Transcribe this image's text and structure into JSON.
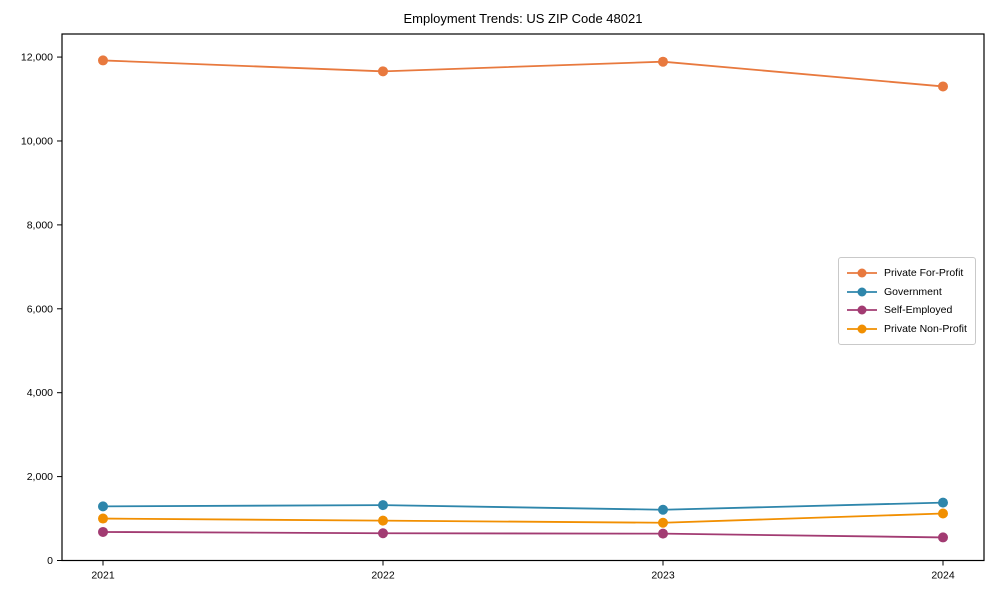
{
  "chart_data": {
    "type": "line",
    "title": "Employment Trends: US ZIP Code 48021",
    "xlabel": "",
    "ylabel": "",
    "x": [
      "2021",
      "2022",
      "2023",
      "2024"
    ],
    "series": [
      {
        "name": "Private For-Profit",
        "color": "#E8793E",
        "values": [
          11920,
          11660,
          11890,
          11300
        ]
      },
      {
        "name": "Government",
        "color": "#2E86AB",
        "values": [
          1290,
          1320,
          1210,
          1380
        ]
      },
      {
        "name": "Self-Employed",
        "color": "#A23B72",
        "values": [
          680,
          650,
          640,
          550
        ]
      },
      {
        "name": "Private Non-Profit",
        "color": "#F18F01",
        "values": [
          1000,
          950,
          900,
          1120
        ]
      }
    ],
    "ylim": [
      0,
      12550
    ],
    "yticks": [
      0,
      2000,
      4000,
      6000,
      8000,
      10000,
      12000
    ],
    "ytick_labels": [
      "0",
      "2,000",
      "4,000",
      "6,000",
      "8,000",
      "10,000",
      "12,000"
    ],
    "grid": false,
    "legend_position": "center-right",
    "frame": true,
    "axis_color": "#000000",
    "marker": "circle"
  }
}
